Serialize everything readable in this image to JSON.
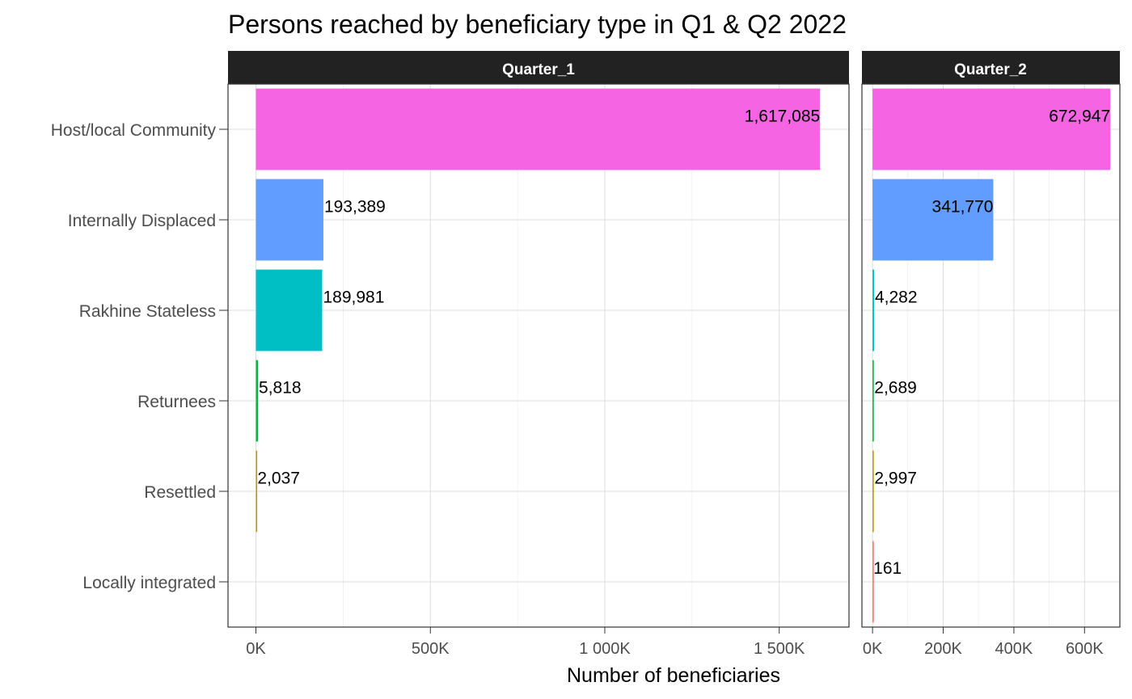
{
  "chart_data": {
    "type": "bar",
    "orientation": "horizontal",
    "title": "Persons reached by beneficiary type in Q1 & Q2 2022",
    "xlabel": "Number of beneficiaries",
    "ylabel": "",
    "categories": [
      "Host/local Community",
      "Internally Displaced",
      "Rakhine Stateless",
      "Returnees",
      "Resettled",
      "Locally integrated"
    ],
    "colors": [
      "#F564E3",
      "#619CFF",
      "#00BFC4",
      "#00BA38",
      "#B79F00",
      "#F8766D"
    ],
    "grid": true,
    "legend": "none",
    "panels": [
      {
        "name": "Quarter_1",
        "values": [
          1617085,
          193389,
          189981,
          5818,
          2037,
          null
        ],
        "value_labels": [
          "1,617,085",
          "193,389",
          "189,981",
          "5,818",
          "2,037",
          ""
        ],
        "xlim": [
          -80000,
          1700000
        ],
        "ticks": [
          0,
          500000,
          1000000,
          1500000
        ],
        "tick_labels": [
          "0K",
          "500K",
          "1 000K",
          "1 500K"
        ]
      },
      {
        "name": "Quarter_2",
        "values": [
          672947,
          341770,
          4282,
          2689,
          2997,
          161
        ],
        "value_labels": [
          "672,947",
          "341,770",
          "4,282",
          "2,689",
          "2,997",
          "161"
        ],
        "xlim": [
          -30000,
          700000
        ],
        "ticks": [
          0,
          200000,
          400000,
          600000
        ],
        "tick_labels": [
          "0K",
          "200K",
          "400K",
          "600K"
        ]
      }
    ]
  }
}
